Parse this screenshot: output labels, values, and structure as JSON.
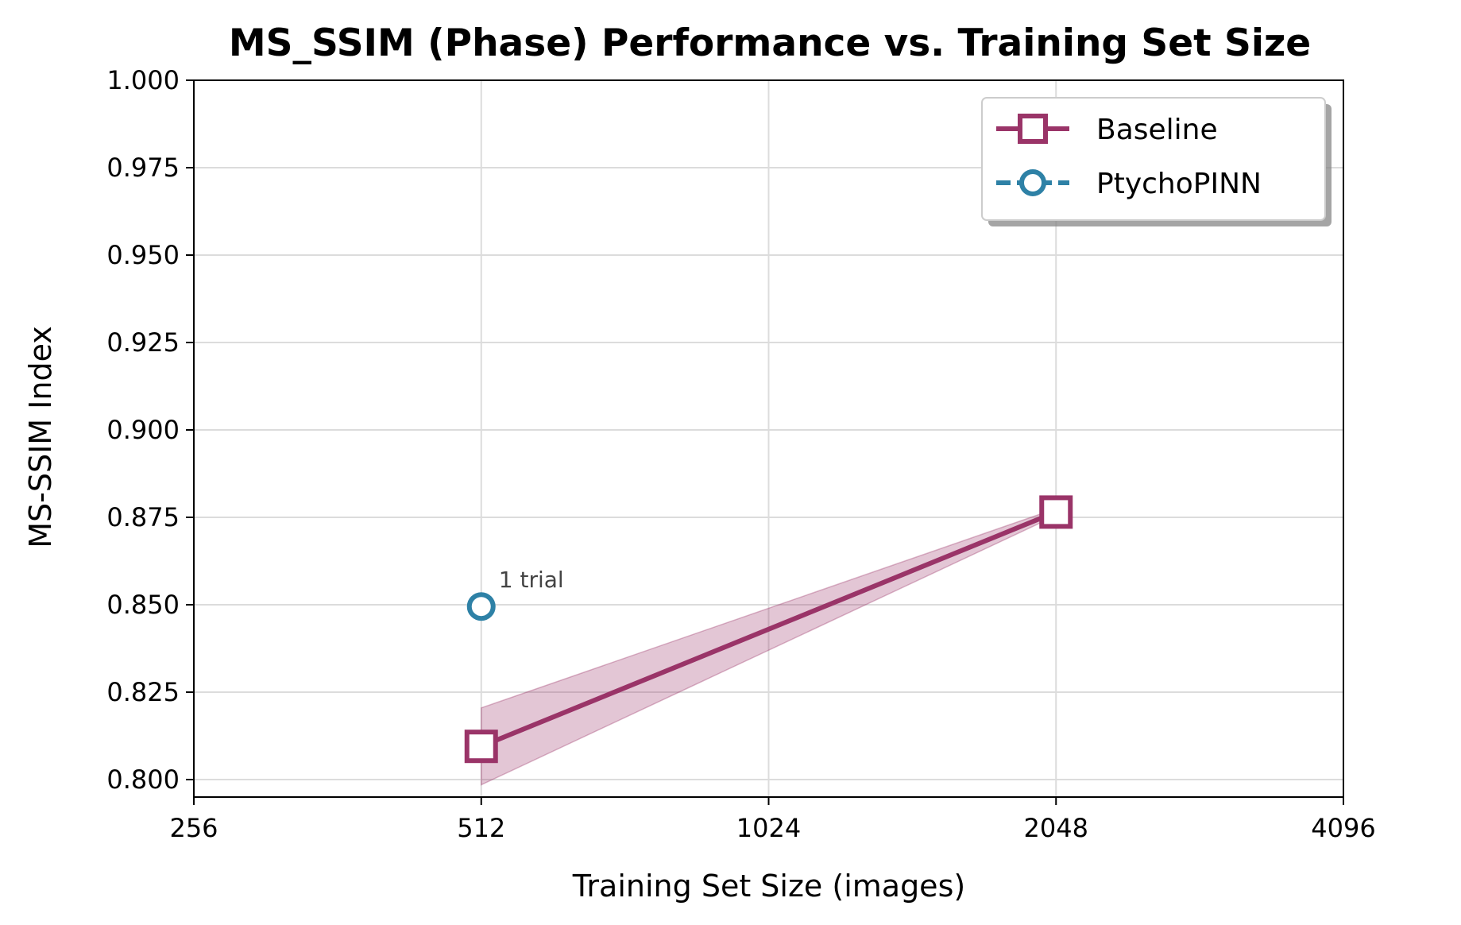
{
  "chart_data": {
    "type": "line",
    "title": "MS_SSIM (Phase) Performance vs. Training Set Size",
    "xlabel": "Training Set Size (images)",
    "ylabel": "MS-SSIM Index",
    "x_scale": "log2",
    "xlim": [
      256,
      4096
    ],
    "ylim": [
      0.795,
      1.0
    ],
    "x_ticks": [
      "256",
      "512",
      "1024",
      "2048",
      "4096"
    ],
    "y_ticks": [
      "0.800",
      "0.825",
      "0.850",
      "0.875",
      "0.900",
      "0.925",
      "0.950",
      "0.975",
      "1.000"
    ],
    "grid": true,
    "legend_position": "top-right",
    "series": [
      {
        "name": "Baseline",
        "color": "#9a3468",
        "marker": "square",
        "x": [
          512,
          2048
        ],
        "y": [
          0.8095,
          0.8765
        ],
        "band_lower": [
          0.7985,
          0.8755
        ],
        "band_upper": [
          0.8205,
          0.8775
        ]
      },
      {
        "name": "PtychoPINN",
        "color": "#2e81a6",
        "marker": "circle",
        "x": [
          512
        ],
        "y": [
          0.8495
        ]
      }
    ],
    "annotations": [
      {
        "text": "1 trial",
        "x": 512,
        "y": 0.8495
      }
    ]
  }
}
